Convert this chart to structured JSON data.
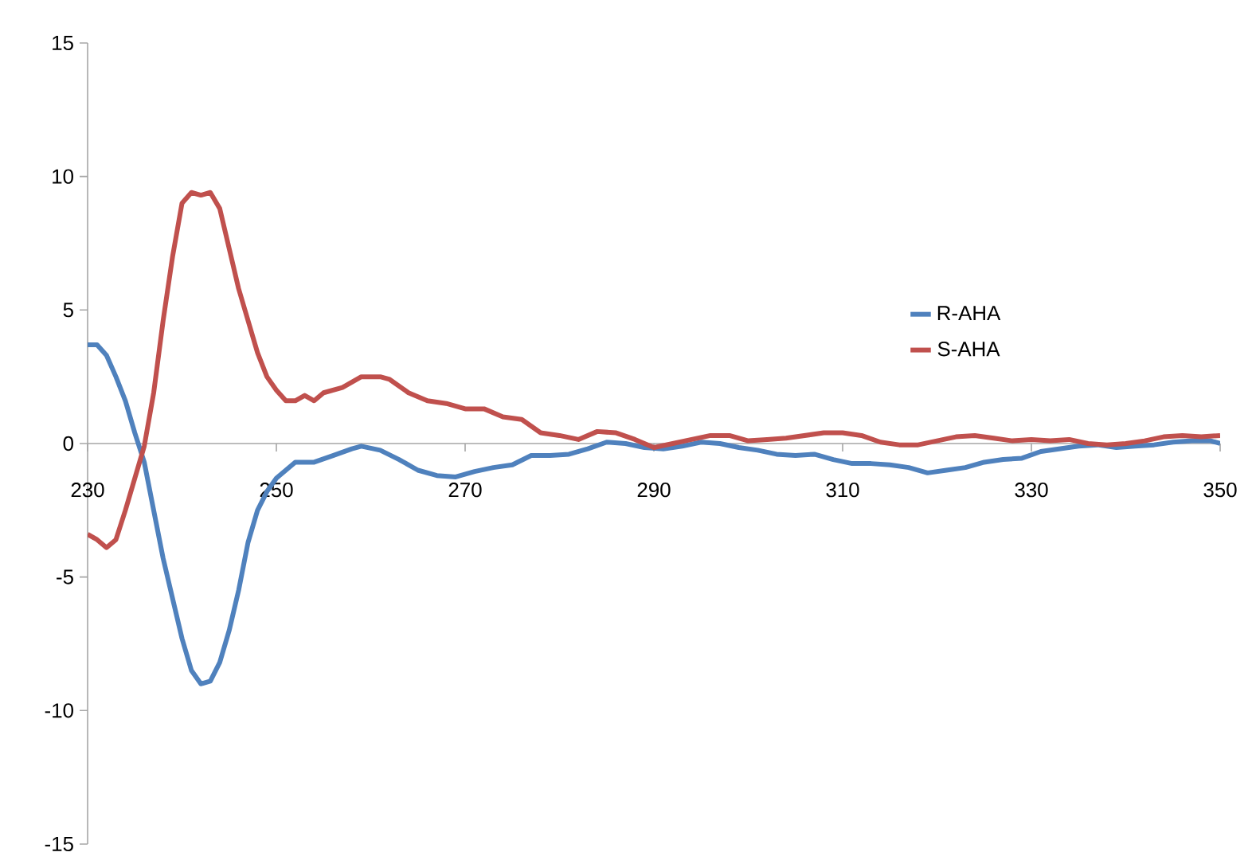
{
  "chart_data": {
    "type": "line",
    "xlim": [
      230,
      350
    ],
    "ylim": [
      -15,
      15
    ],
    "xticks": [
      230,
      250,
      270,
      290,
      310,
      330,
      350
    ],
    "yticks": [
      -15,
      -10,
      -5,
      0,
      5,
      10,
      15
    ],
    "grid": false,
    "legend": "right",
    "marker": "none",
    "line_style": "solid",
    "series": [
      {
        "name": "R-AHA",
        "color": "#4f81bd",
        "x": [
          230,
          231,
          232,
          233,
          234,
          235,
          236,
          237,
          238,
          239,
          240,
          241,
          242,
          243,
          244,
          245,
          246,
          247,
          248,
          249,
          250,
          251,
          252,
          254,
          256,
          258,
          259,
          261,
          263,
          265,
          267,
          269,
          271,
          273,
          275,
          277,
          279,
          281,
          283,
          285,
          287,
          289,
          291,
          293,
          295,
          297,
          299,
          301,
          303,
          305,
          307,
          309,
          311,
          313,
          315,
          317,
          319,
          321,
          323,
          325,
          327,
          329,
          331,
          333,
          335,
          337,
          339,
          341,
          343,
          345,
          347,
          349,
          350
        ],
        "values": [
          3.7,
          3.7,
          3.3,
          2.5,
          1.6,
          0.4,
          -0.7,
          -2.5,
          -4.3,
          -5.8,
          -7.3,
          -8.5,
          -9.0,
          -8.9,
          -8.2,
          -7.0,
          -5.5,
          -3.7,
          -2.5,
          -1.8,
          -1.3,
          -1.0,
          -0.7,
          -0.7,
          -0.45,
          -0.2,
          -0.1,
          -0.25,
          -0.6,
          -1.0,
          -1.2,
          -1.25,
          -1.05,
          -0.9,
          -0.8,
          -0.45,
          -0.45,
          -0.4,
          -0.2,
          0.05,
          0,
          -0.15,
          -0.2,
          -0.1,
          0.05,
          0,
          -0.15,
          -0.25,
          -0.4,
          -0.45,
          -0.4,
          -0.6,
          -0.75,
          -0.75,
          -0.8,
          -0.9,
          -1.1,
          -1.0,
          -0.9,
          -0.7,
          -0.6,
          -0.55,
          -0.3,
          -0.2,
          -0.1,
          -0.05,
          -0.15,
          -0.1,
          -0.05,
          0.05,
          0.1,
          0.1,
          0
        ]
      },
      {
        "name": "S-AHA",
        "color": "#c0504d",
        "x": [
          230,
          231,
          232,
          233,
          234,
          235,
          236,
          237,
          238,
          239,
          240,
          241,
          242,
          243,
          244,
          245,
          246,
          247,
          248,
          249,
          250,
          251,
          252,
          253,
          254,
          255,
          257,
          259,
          261,
          262,
          264,
          266,
          268,
          270,
          272,
          274,
          276,
          278,
          280,
          282,
          284,
          286,
          288,
          290,
          292,
          294,
          296,
          298,
          300,
          302,
          304,
          306,
          308,
          310,
          312,
          314,
          316,
          318,
          320,
          322,
          324,
          326,
          328,
          330,
          332,
          334,
          336,
          338,
          340,
          342,
          344,
          346,
          348,
          350
        ],
        "values": [
          -3.4,
          -3.6,
          -3.9,
          -3.6,
          -2.5,
          -1.3,
          -0.1,
          1.9,
          4.6,
          7.0,
          9.0,
          9.4,
          9.3,
          9.4,
          8.8,
          7.3,
          5.8,
          4.6,
          3.4,
          2.5,
          2.0,
          1.6,
          1.6,
          1.8,
          1.6,
          1.9,
          2.1,
          2.5,
          2.5,
          2.4,
          1.9,
          1.6,
          1.5,
          1.3,
          1.3,
          1.0,
          0.9,
          0.4,
          0.3,
          0.15,
          0.45,
          0.4,
          0.15,
          -0.15,
          0,
          0.15,
          0.3,
          0.3,
          0.1,
          0.15,
          0.2,
          0.3,
          0.4,
          0.4,
          0.3,
          0.05,
          -0.05,
          -0.05,
          0.1,
          0.25,
          0.3,
          0.2,
          0.1,
          0.15,
          0.1,
          0.15,
          0,
          -0.05,
          0,
          0.1,
          0.25,
          0.3,
          0.25,
          0.3
        ]
      }
    ]
  }
}
